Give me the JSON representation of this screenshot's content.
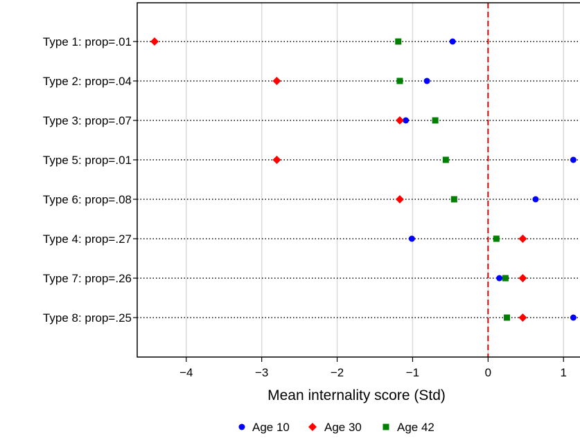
{
  "chart_data": {
    "type": "scatter",
    "xlabel": "Mean internality score (Std)",
    "xlim": [
      -4.65,
      1.2
    ],
    "xticks": [
      -4,
      -3,
      -2,
      -1,
      0,
      1
    ],
    "xtick_labels": [
      "−4",
      "−3",
      "−2",
      "−1",
      "0",
      "1"
    ],
    "reference_line_x": 0,
    "grid": "vertical",
    "legend_position": "bottom",
    "categories": [
      "Type 1: prop=.01",
      "Type 2: prop=.04",
      "Type 3: prop=.07",
      "Type 5: prop=.01",
      "Type 6: prop=.08",
      "Type 4: prop=.27",
      "Type 7: prop=.26",
      "Type 8: prop=.25"
    ],
    "series": [
      {
        "name": "Age 10",
        "marker": "circle",
        "color": "#0000ff",
        "values": [
          -0.47,
          -0.81,
          -1.09,
          1.13,
          0.63,
          -1.01,
          0.15,
          1.13
        ]
      },
      {
        "name": "Age 30",
        "marker": "diamond",
        "color": "#ff0000",
        "values": [
          -4.42,
          -2.8,
          -1.17,
          -2.8,
          -1.17,
          0.46,
          0.46,
          0.46
        ]
      },
      {
        "name": "Age 42",
        "marker": "square",
        "color": "#008000",
        "values": [
          -1.19,
          -1.17,
          -0.7,
          -0.56,
          -0.45,
          0.11,
          0.23,
          0.25
        ]
      }
    ]
  }
}
